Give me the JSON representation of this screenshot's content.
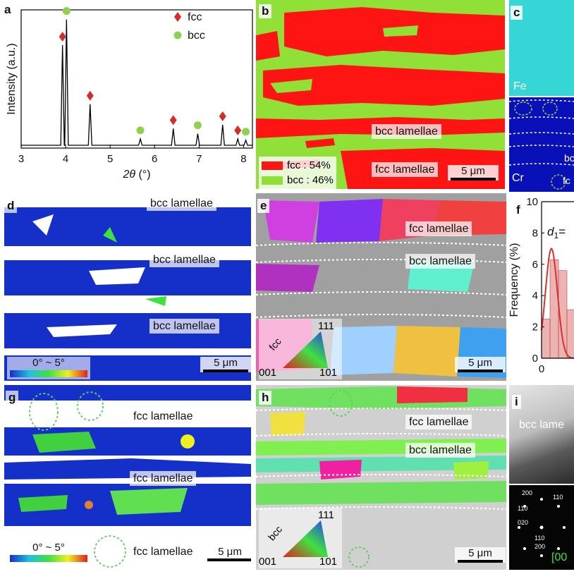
{
  "panel_labels": {
    "a": "a",
    "b": "b",
    "c": "c",
    "d": "d",
    "e": "e",
    "f": "f",
    "g": "g",
    "h": "h",
    "i": "i"
  },
  "chart_data": [
    {
      "type": "line",
      "panel": "a",
      "xlabel_symbol": "2θ",
      "xlabel_unit": " (°)",
      "ylabel": "Intensity (a.u.)",
      "xlim": [
        3,
        8.2
      ],
      "x_ticks": [
        "3",
        "4",
        "5",
        "6",
        "7",
        "8"
      ],
      "legend": [
        {
          "name": "fcc",
          "marker": "diamond",
          "color": "#d42b2b"
        },
        {
          "name": "bcc",
          "marker": "circle",
          "color": "#8fd14f"
        }
      ],
      "peaks": [
        {
          "x": 3.93,
          "height": 0.78,
          "phase": "fcc"
        },
        {
          "x": 4.02,
          "height": 0.98,
          "phase": "bcc"
        },
        {
          "x": 4.55,
          "height": 0.32,
          "phase": "fcc"
        },
        {
          "x": 5.68,
          "height": 0.05,
          "phase": "bcc"
        },
        {
          "x": 6.42,
          "height": 0.13,
          "phase": "fcc"
        },
        {
          "x": 6.97,
          "height": 0.09,
          "phase": "bcc"
        },
        {
          "x": 7.53,
          "height": 0.16,
          "phase": "fcc"
        },
        {
          "x": 7.87,
          "height": 0.05,
          "phase": "fcc"
        },
        {
          "x": 8.05,
          "height": 0.04,
          "phase": "bcc"
        }
      ]
    },
    {
      "type": "bar",
      "panel": "f",
      "ylabel": "Frequency (%)",
      "ylim": [
        0,
        10
      ],
      "y_ticks": [
        "0",
        "2",
        "4",
        "6",
        "8",
        "10"
      ],
      "x_tick_visible": "0",
      "annotation": "d",
      "annotation_sub": "1",
      "annotation_suffix": "=",
      "values": [
        2.5,
        6.3,
        5.6,
        3.1
      ],
      "fit_peak": 7.0,
      "color": "#e08080"
    }
  ],
  "panel_b": {
    "lamellae_label_1": "bcc lamellae",
    "lamellae_label_2": "fcc lamellae",
    "legend_fcc": "fcc : 54%",
    "legend_bcc": "bcc : 46%",
    "scale": "5 μm",
    "fcc_color": "#ff1414",
    "bcc_color": "#90e038"
  },
  "panel_c": {
    "fe_label": "Fe",
    "cr_label": "Cr",
    "bc_partial": "bc",
    "fc_partial": "fc",
    "fe_color": "#37d6d6",
    "cr_color": "#0a10b8"
  },
  "panel_d": {
    "labels": [
      "bcc lamellae",
      "bcc lamellae",
      "bcc lamellae"
    ],
    "range": "0° ~ 5°",
    "scale": "5 μm"
  },
  "panel_e": {
    "labels": [
      "fcc lamellae",
      "bcc lamellae"
    ],
    "ipf_phase": "fcc",
    "ipf_111": "111",
    "ipf_001": "001",
    "ipf_101": "101",
    "scale": "5 μm"
  },
  "panel_g": {
    "labels": [
      "fcc lamellae",
      "fcc lamellae",
      "fcc lamellae"
    ],
    "range": "0° ~ 5°",
    "scale": "5 μm"
  },
  "panel_h": {
    "labels": [
      "fcc lamellae",
      "bcc lamellae"
    ],
    "ipf_phase": "bcc",
    "ipf_111": "111",
    "ipf_001": "001",
    "ipf_101": "101",
    "scale": "5 μm"
  },
  "panel_i": {
    "bright_label": "bcc lame",
    "diffraction_spots": [
      "200",
      "110",
      "110",
      "020",
      "110",
      "200"
    ],
    "zone": "[00"
  }
}
